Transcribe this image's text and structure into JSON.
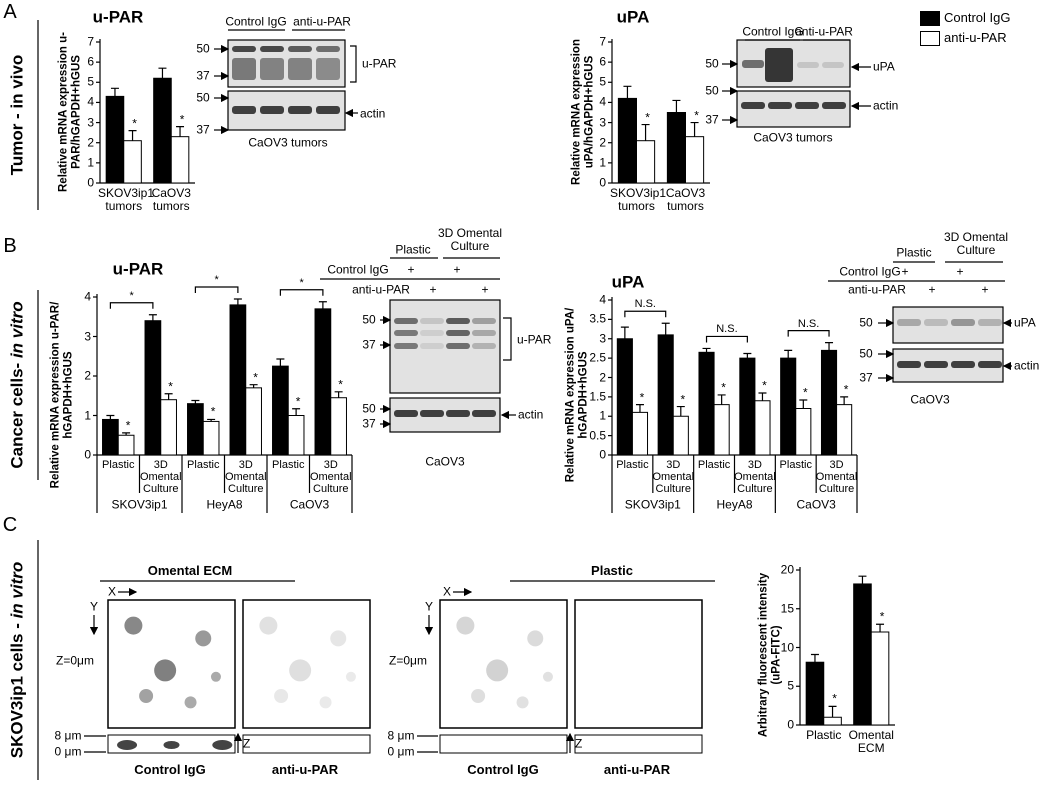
{
  "panels": [
    "A",
    "B",
    "C"
  ],
  "side_labels": [
    {
      "text": "Tumor - in vivo"
    },
    {
      "text": "Cancer cells- ",
      "italic": "in vitro"
    },
    {
      "text": "SKOV3ip1 cells - ",
      "italic": "in vitro"
    }
  ],
  "chart_data": [
    {
      "type": "bar",
      "title": "u-PAR",
      "y_label": "Relative mRNA expression u-PAR/hGAPDH+hGUS",
      "categories": [
        "SKOV3ip1 tumors",
        "CaOV3 tumors"
      ],
      "ylim": [
        0,
        7
      ],
      "yticks": [
        0,
        1,
        2,
        3,
        4,
        5,
        6,
        7
      ],
      "series": [
        {
          "name": "Control IgG",
          "color": "#000000",
          "values": [
            4.3,
            5.2
          ],
          "errors": [
            0.4,
            0.5
          ]
        },
        {
          "name": "anti-u-PAR",
          "color": "#ffffff",
          "values": [
            2.1,
            2.3
          ],
          "errors": [
            0.5,
            0.5
          ],
          "annotations": [
            "*",
            "*"
          ]
        }
      ]
    },
    {
      "type": "bar",
      "title": "uPA",
      "y_label": "Relative mRNA expression uPA/hGAPDH+hGUS",
      "categories": [
        "SKOV3ip1 tumors",
        "CaOV3 tumors"
      ],
      "ylim": [
        0,
        7
      ],
      "yticks": [
        0,
        1,
        2,
        3,
        4,
        5,
        6,
        7
      ],
      "series": [
        {
          "color": "#000000",
          "values": [
            4.2,
            3.5
          ],
          "errors": [
            0.6,
            0.6
          ]
        },
        {
          "color": "#ffffff",
          "values": [
            2.1,
            2.3
          ],
          "errors": [
            0.8,
            0.7
          ],
          "annotations": [
            "*",
            "*"
          ]
        }
      ]
    },
    {
      "type": "bar",
      "title": "u-PAR",
      "y_label": "Relative mRNA expression u-PAR/ hGAPDH+hGUS",
      "categories": [
        "Plastic",
        "3D Omental Culture",
        "Plastic",
        "3D Omental Culture",
        "Plastic",
        "3D Omental Culture"
      ],
      "groups": [
        "SKOV3ip1",
        "HeyA8",
        "CaOV3"
      ],
      "group_annotations": [
        "*",
        "*",
        "*"
      ],
      "ylim": [
        0,
        4
      ],
      "yticks": [
        0,
        1,
        2,
        3,
        4
      ],
      "series": [
        {
          "color": "#000000",
          "values": [
            0.9,
            3.4,
            1.3,
            3.8,
            2.25,
            3.7
          ],
          "errors": [
            0.1,
            0.15,
            0.08,
            0.15,
            0.18,
            0.18
          ]
        },
        {
          "color": "#ffffff",
          "values": [
            0.5,
            1.4,
            0.85,
            1.7,
            1.0,
            1.45
          ],
          "errors": [
            0.06,
            0.15,
            0.05,
            0.08,
            0.17,
            0.15
          ],
          "annotations": [
            "*",
            "*",
            "*",
            "*",
            "*",
            "*"
          ]
        }
      ]
    },
    {
      "type": "bar",
      "title": "uPA",
      "y_label": "Relative mRNA expression uPA/ hGAPDH+hGUS",
      "categories": [
        "Plastic",
        "3D Omental Culture",
        "Plastic",
        "3D Omental Culture",
        "Plastic",
        "3D Omental Culture"
      ],
      "groups": [
        "SKOV3ip1",
        "HeyA8",
        "CaOV3"
      ],
      "group_annotations": [
        "N.S.",
        "N.S.",
        "N.S."
      ],
      "ylim": [
        0,
        4
      ],
      "yticks": [
        0,
        0.5,
        1,
        1.5,
        2,
        2.5,
        3,
        3.5,
        4
      ],
      "series": [
        {
          "color": "#000000",
          "values": [
            3.0,
            3.1,
            2.65,
            2.5,
            2.5,
            2.7
          ],
          "errors": [
            0.3,
            0.3,
            0.1,
            0.12,
            0.2,
            0.2
          ]
        },
        {
          "color": "#ffffff",
          "values": [
            1.1,
            1.0,
            1.3,
            1.4,
            1.2,
            1.3
          ],
          "errors": [
            0.2,
            0.25,
            0.25,
            0.2,
            0.22,
            0.2
          ],
          "annotations": [
            "*",
            "*",
            "*",
            "*",
            "*",
            "*"
          ]
        }
      ]
    },
    {
      "type": "bar",
      "y_label": "Arbitrary fluorescent intensity (uPA-FITC)",
      "categories": [
        "Plastic",
        "Omental ECM"
      ],
      "ylim": [
        0,
        20
      ],
      "yticks": [
        0,
        5,
        10,
        15,
        20
      ],
      "series": [
        {
          "color": "#000000",
          "values": [
            8.1,
            18.2
          ],
          "errors": [
            1.0,
            1.0
          ]
        },
        {
          "color": "#ffffff",
          "values": [
            1.0,
            12.0
          ],
          "errors": [
            1.4,
            1.0
          ],
          "annotations": [
            "*",
            "*"
          ]
        }
      ]
    }
  ],
  "blots": [
    {
      "headers": [
        "Control IgG",
        "anti-u-PAR"
      ],
      "markers": [
        "50",
        "37",
        "50",
        "37"
      ],
      "bands": [
        "u-PAR",
        "actin"
      ],
      "caption": "CaOV3 tumors"
    },
    {
      "headers": [
        "Control IgG",
        "anti-u-PAR"
      ],
      "markers": [
        "50",
        "50",
        "37"
      ],
      "bands": [
        "uPA",
        "actin"
      ],
      "caption": "CaOV3 tumors"
    },
    {
      "headers": [
        "Plastic",
        "3D Omental Culture"
      ],
      "rows": [
        {
          "label": "Control IgG",
          "marks": [
            "+",
            "+"
          ]
        },
        {
          "label": "anti-u-PAR",
          "marks": [
            "+",
            "+"
          ]
        }
      ],
      "markers": [
        "50",
        "37",
        "50",
        "37"
      ],
      "bands": [
        "u-PAR",
        "actin"
      ],
      "caption": "CaOV3"
    },
    {
      "headers": [
        "Plastic",
        "3D Omental Culture"
      ],
      "rows": [
        {
          "label": "Control IgG",
          "marks": [
            "+",
            "+"
          ]
        },
        {
          "label": "anti-u-PAR",
          "marks": [
            "+",
            "+"
          ]
        }
      ],
      "markers": [
        "50",
        "50",
        "37"
      ],
      "bands": [
        "uPA",
        "actin"
      ],
      "caption": "CaOV3"
    }
  ],
  "microscopy": {
    "sections": [
      {
        "title": "Omental ECM",
        "x": "X",
        "y": "Y",
        "z0": "Z=0μm",
        "depths": [
          "8 μm",
          "0 μm"
        ],
        "z": "Z",
        "conditions": [
          "Control IgG",
          "anti-u-PAR"
        ]
      },
      {
        "title": "Plastic",
        "x": "X",
        "y": "Y",
        "z0": "Z=0μm",
        "depths": [
          "8 μm",
          "0 μm"
        ],
        "z": "Z",
        "conditions": [
          "Control IgG",
          "anti-u-PAR"
        ]
      }
    ]
  }
}
